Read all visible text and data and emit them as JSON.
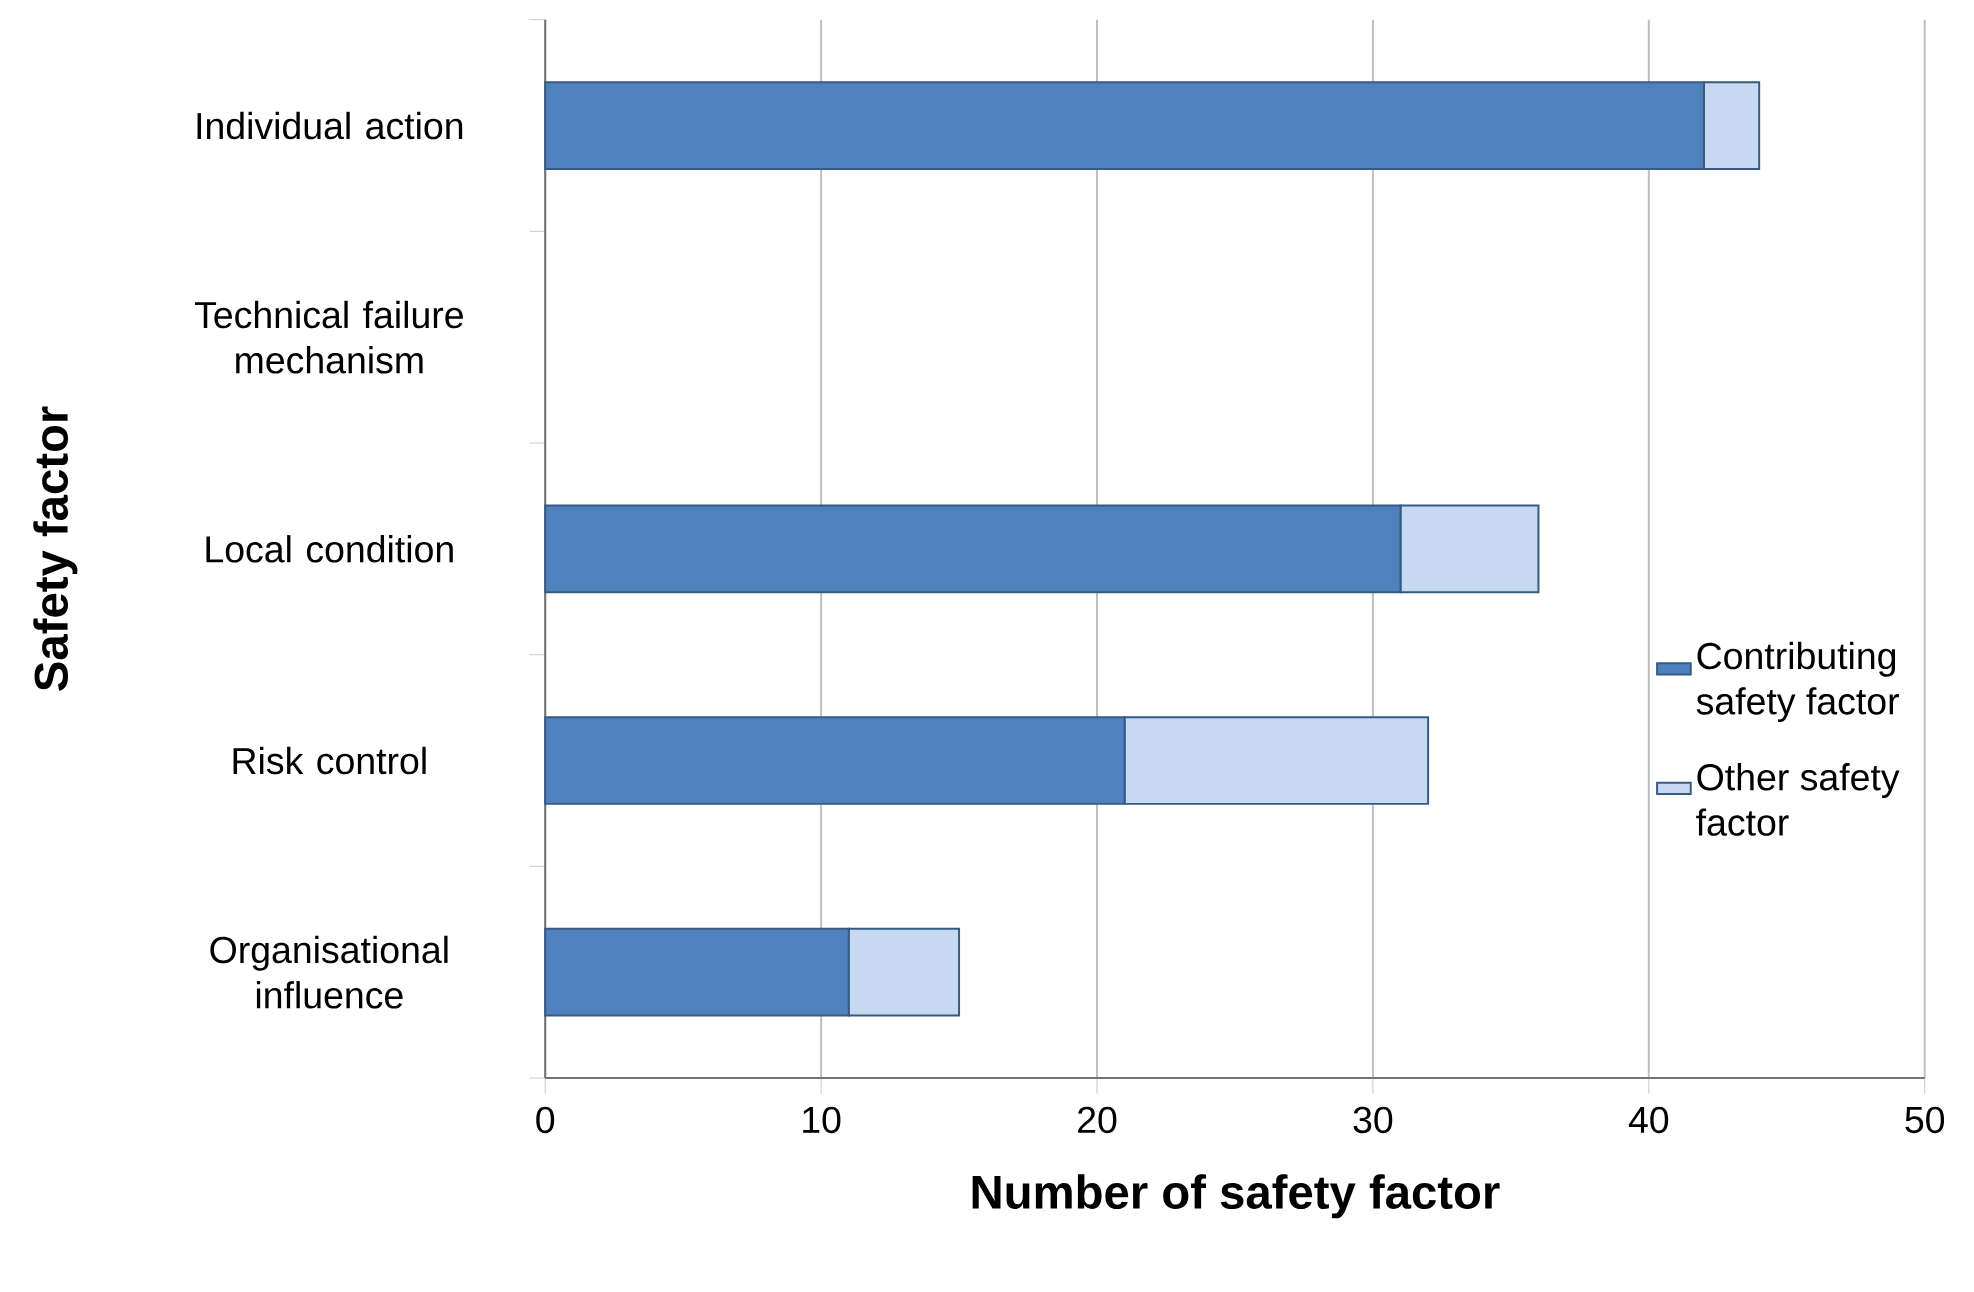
{
  "chart_data": {
    "type": "bar",
    "orientation": "horizontal",
    "stacked": true,
    "xlabel": "Number of safety factor",
    "ylabel": "Safety factor",
    "categories": [
      "Individual action",
      "Technical failure mechanism",
      "Local condition",
      "Risk control",
      "Organisational influence"
    ],
    "series": [
      {
        "name": "Contributing safety factor",
        "color": "#4f81bd",
        "values": [
          42,
          0,
          31,
          21,
          11
        ]
      },
      {
        "name": "Other safety factor",
        "color": "#c6d9f1",
        "values": [
          2,
          0,
          5,
          11,
          4
        ]
      }
    ],
    "xlim": [
      0,
      50
    ],
    "xticks": [
      0,
      10,
      20,
      30,
      40,
      50
    ],
    "grid": "x",
    "legend": "right"
  }
}
